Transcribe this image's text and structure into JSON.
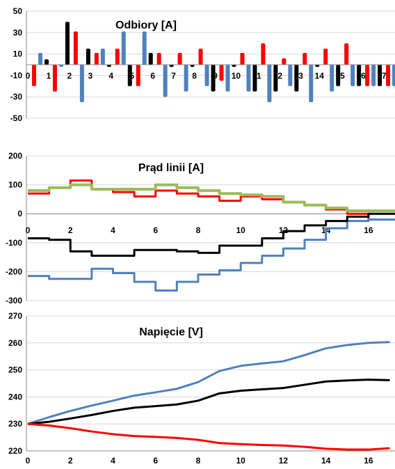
{
  "chart_data": [
    {
      "type": "bar",
      "title": "Odbiory [A]",
      "xlabel": "",
      "ylabel": "",
      "ylim": [
        -50,
        50
      ],
      "yticks": [
        -50,
        -30,
        -10,
        10,
        30,
        50
      ],
      "categories": [
        "0",
        "1",
        "2",
        "3",
        "4",
        "5",
        "6",
        "7",
        "8",
        "9",
        "10",
        "11",
        "12",
        "13",
        "14",
        "15",
        "16",
        "17"
      ],
      "series": [
        {
          "color": "#ff0000",
          "values": [
            -20,
            -25,
            31,
            11,
            15,
            -20,
            11,
            11,
            15,
            -15,
            11,
            20,
            6,
            11,
            15,
            20,
            -20,
            -20
          ]
        },
        {
          "color": "#4f81bd",
          "values": [
            11,
            -2,
            -35,
            15,
            31,
            31,
            -30,
            -25,
            -20,
            -25,
            -25,
            -35,
            -20,
            -35,
            -25,
            -20,
            -20,
            -20
          ]
        },
        {
          "color": "#000000",
          "values": [
            5,
            40,
            15,
            -2,
            -20,
            11,
            -2,
            -2,
            -25,
            -2,
            -25,
            -25,
            -25,
            -2,
            -20,
            -20,
            -20,
            10
          ]
        }
      ]
    },
    {
      "type": "line",
      "title": "Prąd linii [A]",
      "xlabel": "",
      "ylabel": "",
      "xlim": [
        0,
        17
      ],
      "xticks": [
        0,
        2,
        4,
        6,
        8,
        10,
        12,
        14,
        16
      ],
      "ylim": [
        -300,
        200
      ],
      "yticks": [
        -300,
        -200,
        -100,
        0,
        100,
        200
      ],
      "step": true,
      "x": [
        0,
        1,
        2,
        3,
        4,
        5,
        6,
        7,
        8,
        9,
        10,
        11,
        12,
        13,
        14,
        15,
        16,
        17
      ],
      "series": [
        {
          "color": "#ff0000",
          "values": [
            70,
            90,
            115,
            85,
            75,
            60,
            80,
            70,
            60,
            45,
            60,
            50,
            40,
            30,
            15,
            0,
            -20,
            -20
          ]
        },
        {
          "color": "#4f81bd",
          "values": [
            -215,
            -225,
            -225,
            -190,
            -205,
            -235,
            -265,
            -235,
            -210,
            -195,
            -170,
            -145,
            -120,
            -90,
            -50,
            -25,
            -20,
            -20
          ]
        },
        {
          "color": "#000000",
          "values": [
            -85,
            -90,
            -130,
            -145,
            -145,
            -125,
            -125,
            -130,
            -135,
            -110,
            -110,
            -85,
            -60,
            -40,
            -25,
            -10,
            0,
            0
          ]
        },
        {
          "color": "#9bbb59",
          "values": [
            80,
            90,
            100,
            85,
            85,
            85,
            100,
            90,
            80,
            70,
            65,
            60,
            40,
            30,
            20,
            10,
            10,
            10
          ]
        }
      ]
    },
    {
      "type": "line",
      "title": "Napięcie [V]",
      "xlabel": "",
      "ylabel": "",
      "xlim": [
        0,
        17
      ],
      "xticks": [
        0,
        2,
        4,
        6,
        8,
        10,
        12,
        14,
        16
      ],
      "ylim": [
        220,
        270
      ],
      "yticks": [
        220,
        230,
        240,
        250,
        260,
        270
      ],
      "x": [
        0,
        1,
        2,
        3,
        4,
        5,
        6,
        7,
        8,
        9,
        10,
        11,
        12,
        13,
        14,
        15,
        16,
        17
      ],
      "series": [
        {
          "color": "#4f81bd",
          "values": [
            230,
            232.5,
            234.8,
            236.8,
            238.6,
            240.5,
            241.7,
            243,
            245.5,
            249.6,
            251.5,
            252.4,
            253.2,
            255.5,
            258,
            259.2,
            260,
            260.3
          ]
        },
        {
          "color": "#000000",
          "values": [
            230,
            230.8,
            232,
            233.3,
            234.8,
            236,
            236.6,
            237.2,
            238.6,
            241.3,
            242.3,
            242.8,
            243.3,
            244.5,
            245.7,
            246.1,
            246.4,
            246.2
          ]
        },
        {
          "color": "#ff0000",
          "values": [
            230,
            229.4,
            228.4,
            227.2,
            226.2,
            225.5,
            225.2,
            224.8,
            224.1,
            222.9,
            222.5,
            222.2,
            222,
            221.5,
            220.8,
            220.5,
            220.5,
            221
          ]
        }
      ]
    }
  ]
}
